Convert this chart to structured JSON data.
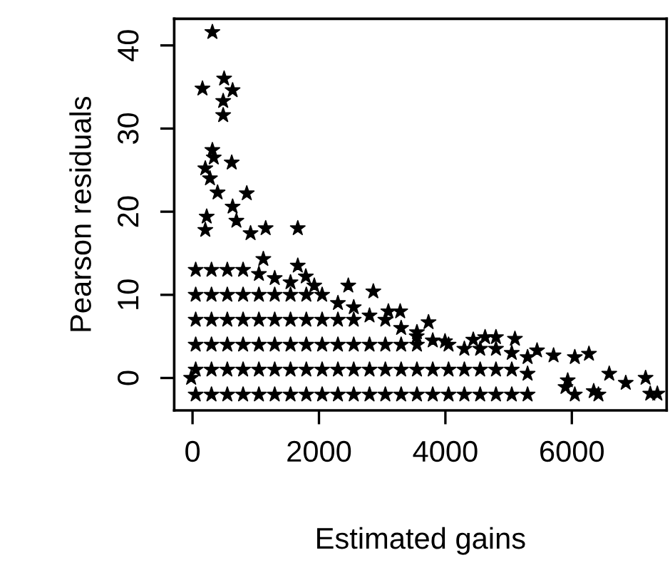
{
  "chart_data": {
    "type": "scatter",
    "xlabel": "Estimated gains",
    "ylabel": "Pearson residuals",
    "xlim": [
      -290,
      7500
    ],
    "ylim": [
      -3.9,
      43.2
    ],
    "xticks": [
      0,
      2000,
      4000,
      6000
    ],
    "yticks": [
      0,
      10,
      20,
      30,
      40
    ],
    "marker": "star",
    "grid": false,
    "series": [
      {
        "color": "#000000",
        "x": [
          314,
          157,
          500,
          634,
          485,
          485,
          314,
          336,
          620,
          202,
          276,
          858,
          396,
          634,
          224,
          694,
          1157,
          1665,
          918,
          202,
          1120,
          1665,
          1792,
          1926,
          2464,
          2860,
          3098,
          3285,
          3733,
          3546,
          3994,
          4441,
          4628,
          4800,
          5100,
          5450,
          5711,
          6047,
          6271,
          6592,
          6853,
          7167,
          7241,
          7353,
          6421,
          6346,
          6047,
          5935,
          5900,
          -22,
          50,
          50,
          50,
          50,
          50,
          50,
          300,
          300,
          300,
          300,
          300,
          300,
          550,
          550,
          550,
          550,
          550,
          550,
          800,
          800,
          800,
          800,
          800,
          800,
          1050,
          1050,
          1050,
          1050,
          1050,
          1050,
          1300,
          1300,
          1300,
          1300,
          1300,
          1300,
          1550,
          1550,
          1550,
          1550,
          1550,
          1550,
          1800,
          1800,
          1800,
          1800,
          1800,
          2050,
          2050,
          2050,
          2050,
          2050,
          2300,
          2300,
          2300,
          2300,
          2300,
          2550,
          2550,
          2550,
          2550,
          2550,
          2800,
          2800,
          2800,
          2800,
          3050,
          3050,
          3050,
          3050,
          3300,
          3300,
          3300,
          3300,
          3550,
          3550,
          3550,
          3550,
          3800,
          3800,
          3800,
          4050,
          4050,
          4050,
          4300,
          4300,
          4300,
          4550,
          4550,
          4550,
          4800,
          4800,
          4800,
          5050,
          5050,
          5050,
          5300,
          5300,
          5300
        ],
        "values": [
          41.6,
          34.8,
          36.0,
          34.6,
          33.3,
          31.6,
          27.4,
          26.5,
          25.9,
          25.2,
          24.0,
          22.2,
          22.3,
          20.6,
          19.4,
          18.9,
          18.0,
          18.0,
          17.4,
          17.8,
          14.3,
          13.5,
          12.2,
          11.1,
          11.1,
          10.4,
          8.0,
          8.0,
          6.7,
          5.0,
          4.4,
          4.6,
          4.9,
          4.9,
          4.7,
          3.3,
          2.7,
          2.5,
          2.9,
          0.5,
          -0.6,
          0,
          -1.9,
          -1.9,
          -2.0,
          -1.6,
          -2.0,
          -0.3,
          -1.1,
          0,
          -2,
          1,
          4,
          7,
          10,
          13,
          -2,
          1,
          4,
          7,
          10,
          13,
          -2,
          1,
          4,
          7,
          10,
          13,
          -2,
          1,
          4,
          7,
          10,
          13,
          -2,
          1,
          4,
          7,
          10,
          12.5,
          -2,
          1,
          4,
          7,
          10,
          12,
          -2,
          1,
          4,
          7,
          10,
          11.5,
          -2,
          1,
          4,
          7,
          10,
          -2,
          1,
          4,
          7,
          10,
          -2,
          1,
          4,
          7,
          9,
          -2,
          1,
          4,
          7,
          8.5,
          -2,
          1,
          4,
          7.5,
          -2,
          1,
          4,
          7,
          -2,
          1,
          4,
          6,
          -2,
          1,
          4,
          5.5,
          -2,
          1,
          4.5,
          -2,
          1,
          4,
          -2,
          1,
          3.5,
          -2,
          1,
          3.5,
          -2,
          1,
          3.5,
          -2,
          1,
          3,
          -2,
          0.5,
          2.5
        ]
      }
    ]
  }
}
